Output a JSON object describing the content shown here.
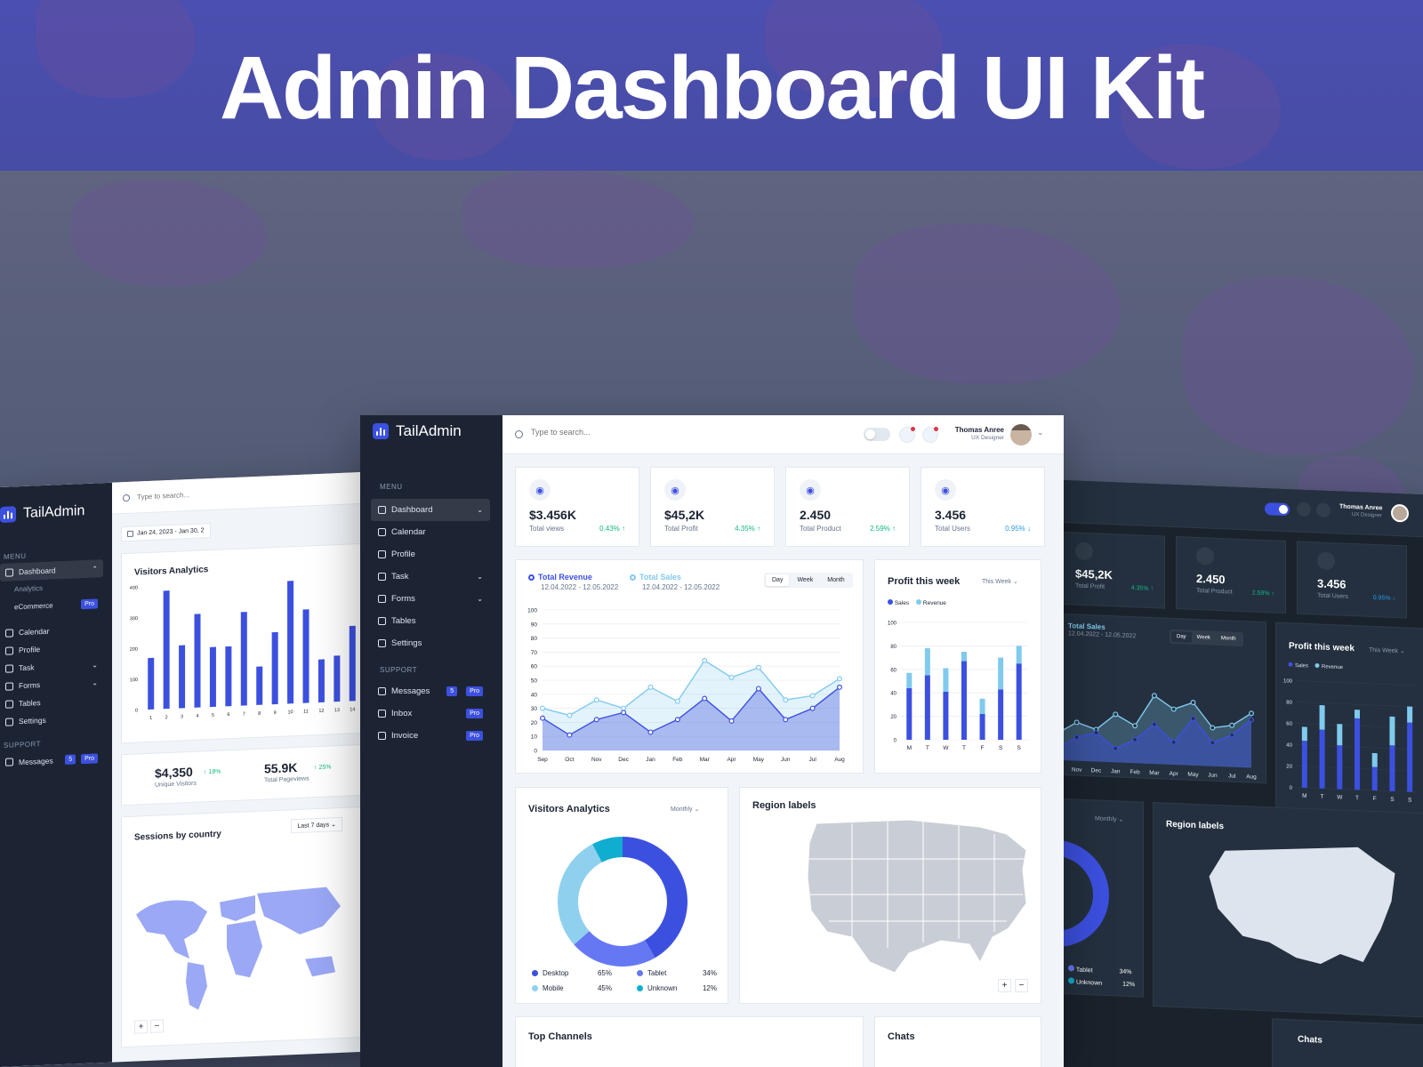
{
  "hero": {
    "title": "Admin Dashboard  UI Kit"
  },
  "colors": {
    "primary": "#3c50e0",
    "sidebar": "#1c2434",
    "light_blue": "#80caee",
    "green": "#10b981",
    "dark_bg": "#1a222c",
    "dark_card": "#24303f"
  },
  "brand": {
    "name": "TailAdmin",
    "icon": "logo-bars-icon"
  },
  "center": {
    "search_placeholder": "Type to search...",
    "user": {
      "name": "Thomas Anree",
      "role": "UX Designer"
    },
    "menu_title": "MENU",
    "menu": [
      {
        "label": "Dashboard",
        "icon": "grid-icon",
        "active": true,
        "chevron": true
      },
      {
        "label": "Calendar",
        "icon": "calendar-icon"
      },
      {
        "label": "Profile",
        "icon": "user-icon"
      },
      {
        "label": "Task",
        "icon": "list-icon",
        "chevron": true
      },
      {
        "label": "Forms",
        "icon": "form-icon",
        "chevron": true
      },
      {
        "label": "Tables",
        "icon": "table-icon"
      },
      {
        "label": "Settings",
        "icon": "gear-icon"
      }
    ],
    "support_title": "SUPPORT",
    "support": [
      {
        "label": "Messages",
        "icon": "message-icon",
        "count": "5",
        "pro": "Pro"
      },
      {
        "label": "Inbox",
        "icon": "inbox-icon",
        "pro": "Pro"
      },
      {
        "label": "Invoice",
        "icon": "invoice-icon",
        "pro": "Pro"
      }
    ],
    "stats": [
      {
        "value": "$3.456K",
        "label": "Total views",
        "pct": "0.43% ↑",
        "trend": "up",
        "icon": "eye-icon"
      },
      {
        "value": "$45,2K",
        "label": "Total Profit",
        "pct": "4.35% ↑",
        "trend": "up",
        "icon": "cart-icon"
      },
      {
        "value": "2.450",
        "label": "Total Product",
        "pct": "2.59% ↑",
        "trend": "up",
        "icon": "bag-icon"
      },
      {
        "value": "3.456",
        "label": "Total Users",
        "pct": "0.95% ↓",
        "trend": "down",
        "icon": "users-icon"
      }
    ],
    "revenue": {
      "series1_label": "Total Revenue",
      "series1_range": "12.04.2022 - 12.05.2022",
      "series2_label": "Total Sales",
      "series2_range": "12.04.2022 - 12.05.2022",
      "tabs": [
        "Day",
        "Week",
        "Month"
      ]
    },
    "profit": {
      "title": "Profit this week",
      "filter": "This Week",
      "legend": [
        "Sales",
        "Revenue"
      ]
    },
    "visitors": {
      "title": "Visitors Analytics",
      "filter": "Monthly",
      "legend": [
        {
          "label": "Desktop",
          "pct": "65%",
          "color": "#3c50e0"
        },
        {
          "label": "Tablet",
          "pct": "34%",
          "color": "#6577f3"
        },
        {
          "label": "Mobile",
          "pct": "45%",
          "color": "#8fd0ef"
        },
        {
          "label": "Unknown",
          "pct": "12%",
          "color": "#0fadcf"
        }
      ]
    },
    "region": {
      "title": "Region labels",
      "zoom_in": "+",
      "zoom_out": "−"
    },
    "top_channels": {
      "title": "Top Channels"
    },
    "chats": {
      "title": "Chats"
    }
  },
  "left": {
    "search_placeholder": "Type to search...",
    "date_range": "Jan 24, 2023 - Jan 30, 2",
    "menu_title": "MENU",
    "menu": [
      {
        "label": "Dashboard",
        "active": true
      },
      {
        "label": "Analytics",
        "sub": true
      },
      {
        "label": "eCommerce",
        "sub": true,
        "pro": "Pro"
      },
      {
        "label": "Calendar"
      },
      {
        "label": "Profile"
      },
      {
        "label": "Task",
        "chevron": true
      },
      {
        "label": "Forms",
        "chevron": true
      },
      {
        "label": "Tables"
      },
      {
        "label": "Settings"
      }
    ],
    "support_title": "SUPPORT",
    "support": [
      {
        "label": "Messages",
        "count": "5",
        "pro": "Pro"
      }
    ],
    "visitors_title": "Visitors Analytics",
    "unique": {
      "value": "$4,350",
      "label": "Unique Visitors",
      "pct": "↑ 18%"
    },
    "pageviews": {
      "value": "55.9K",
      "label": "Total Pageviews",
      "pct": "↑ 25%"
    },
    "sessions": {
      "title": "Sessions by country",
      "filter": "Last 7 days",
      "zoom_in": "+",
      "zoom_out": "−"
    }
  },
  "right": {
    "user": {
      "name": "Thomas Anree",
      "role": "UX Designer"
    },
    "stats": [
      {
        "value": "$45,2K",
        "label": "Total Profit",
        "pct": "4.35% ↑",
        "trend": "up"
      },
      {
        "value": "2.450",
        "label": "Total Product",
        "pct": "2.59% ↑",
        "trend": "up"
      },
      {
        "value": "3.456",
        "label": "Total Users",
        "pct": "0.95% ↓",
        "trend": "down"
      }
    ],
    "sales": {
      "label": "Total Sales",
      "range": "12.04.2022 - 12.05.2022",
      "tabs": [
        "Day",
        "Week",
        "Month"
      ]
    },
    "profit": {
      "title": "Profit this week",
      "filter": "This Week",
      "legend": [
        "Sales",
        "Revenue"
      ]
    },
    "visitors_filter": "Monthly",
    "legend": [
      {
        "label": "Tablet",
        "pct": "34%"
      },
      {
        "label": "Unknown",
        "pct": "12%"
      }
    ],
    "region": {
      "title": "Region labels"
    },
    "chats": {
      "title": "Chats"
    }
  },
  "chart_data": [
    {
      "type": "area",
      "categories": [
        "Sep",
        "Oct",
        "Nov",
        "Dec",
        "Jan",
        "Feb",
        "Mar",
        "Apr",
        "May",
        "Jun",
        "Jul",
        "Aug"
      ],
      "ylim": [
        0,
        100
      ],
      "yticks": [
        0,
        10,
        20,
        30,
        40,
        50,
        60,
        70,
        80,
        90,
        100
      ],
      "series": [
        {
          "name": "Total Revenue",
          "color": "#3c50e0",
          "values": [
            23,
            11,
            22,
            27,
            13,
            22,
            37,
            21,
            44,
            22,
            30,
            45
          ]
        },
        {
          "name": "Total Sales",
          "color": "#80caee",
          "values": [
            30,
            25,
            36,
            30,
            45,
            35,
            64,
            52,
            59,
            36,
            39,
            51
          ]
        }
      ]
    },
    {
      "type": "bar",
      "title": "Profit this week",
      "categories": [
        "M",
        "T",
        "W",
        "T",
        "F",
        "S",
        "S"
      ],
      "ylim": [
        0,
        100
      ],
      "yticks": [
        0,
        20,
        40,
        60,
        80,
        100
      ],
      "stacked": true,
      "series": [
        {
          "name": "Sales",
          "color": "#3c50e0",
          "values": [
            44,
            55,
            41,
            67,
            22,
            43,
            65
          ]
        },
        {
          "name": "Revenue",
          "color": "#80caee",
          "values": [
            13,
            23,
            20,
            8,
            13,
            27,
            15
          ]
        }
      ]
    },
    {
      "type": "pie",
      "title": "Visitors Analytics",
      "categories": [
        "Desktop",
        "Tablet",
        "Mobile",
        "Unknown"
      ],
      "values": [
        65,
        34,
        45,
        12
      ],
      "colors": [
        "#3c50e0",
        "#6577f3",
        "#8fd0ef",
        "#0fadcf"
      ]
    },
    {
      "type": "bar",
      "title": "Visitors Analytics",
      "categories": [
        "1",
        "2",
        "3",
        "4",
        "5",
        "6",
        "7",
        "8",
        "9",
        "10",
        "11",
        "12",
        "13",
        "14"
      ],
      "ylim": [
        0,
        400
      ],
      "yticks": [
        0,
        100,
        200,
        300,
        400
      ],
      "values": [
        168,
        385,
        205,
        305,
        195,
        195,
        305,
        125,
        235,
        400,
        305,
        140,
        150,
        245
      ]
    }
  ]
}
